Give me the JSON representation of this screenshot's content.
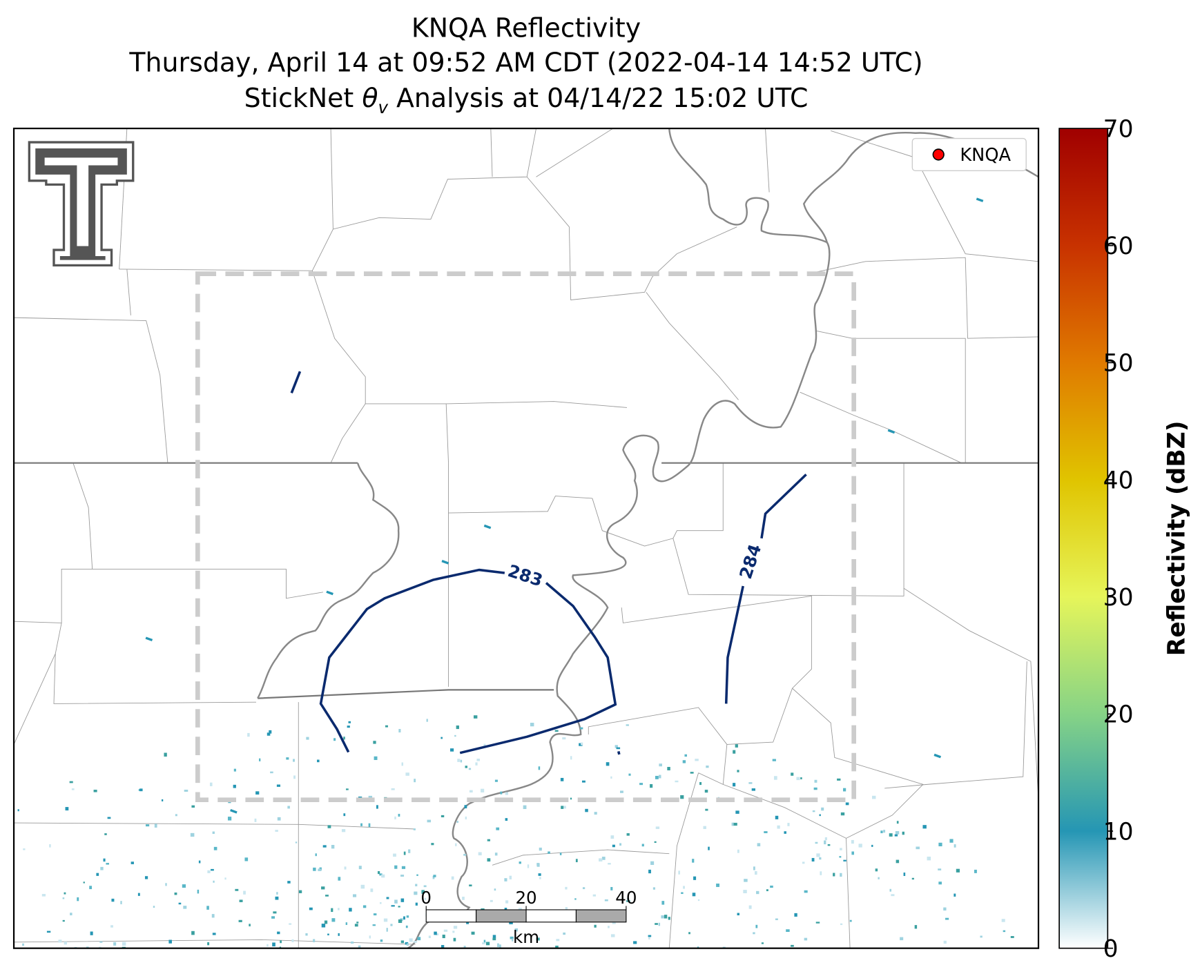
{
  "title": {
    "line1": "KNQA Reflectivity",
    "line2": "Thursday, April 14 at 09:52 AM CDT (2022-04-14 14:52 UTC)",
    "line3": {
      "prefix": "StickNet ",
      "symbol": "θ",
      "subscript": "v",
      "suffix": " Analysis at 04/14/22 15:02 UTC"
    }
  },
  "legend": {
    "label": "KNQA",
    "marker_color": "#ff0000"
  },
  "contours": [
    {
      "value": 283,
      "color": "#0a2a6e"
    },
    {
      "value": 284,
      "color": "#0a2a6e"
    }
  ],
  "scale_bar": {
    "ticks": [
      0,
      20,
      40
    ],
    "unit": "km"
  },
  "colorbar": {
    "label": "Reflectivity (dBZ)",
    "lim": [
      0,
      70
    ],
    "ticks": [
      0,
      10,
      20,
      30,
      40,
      50,
      60,
      70
    ],
    "colors": [
      "#ffffff",
      "#2596b4",
      "#86d386",
      "#e6f55a",
      "#e0c400",
      "#e07a00",
      "#c83200",
      "#a00000"
    ]
  }
}
